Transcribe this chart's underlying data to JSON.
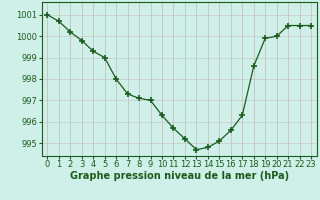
{
  "x": [
    0,
    1,
    2,
    3,
    4,
    5,
    6,
    7,
    8,
    9,
    10,
    11,
    12,
    13,
    14,
    15,
    16,
    17,
    18,
    19,
    20,
    21,
    22,
    23
  ],
  "y": [
    1001.0,
    1000.7,
    1000.2,
    999.8,
    999.3,
    999.0,
    998.0,
    997.3,
    997.1,
    997.0,
    996.3,
    995.7,
    995.2,
    994.7,
    994.8,
    995.1,
    995.6,
    996.3,
    998.6,
    999.9,
    1000.0,
    1000.5,
    1000.5,
    1000.5
  ],
  "line_color": "#1a5c1a",
  "marker_color": "#1a5c1a",
  "bg_color": "#cef0e8",
  "grid_color_v": "#c8b4b4",
  "grid_color_h": "#c8c8c8",
  "xlabel": "Graphe pression niveau de la mer (hPa)",
  "ylabel_ticks": [
    995,
    996,
    997,
    998,
    999,
    1000,
    1001
  ],
  "xlim": [
    -0.5,
    23.5
  ],
  "ylim": [
    994.4,
    1001.6
  ],
  "font_color": "#1a5c1a",
  "font_size": 6.0,
  "label_font_size": 7.0
}
